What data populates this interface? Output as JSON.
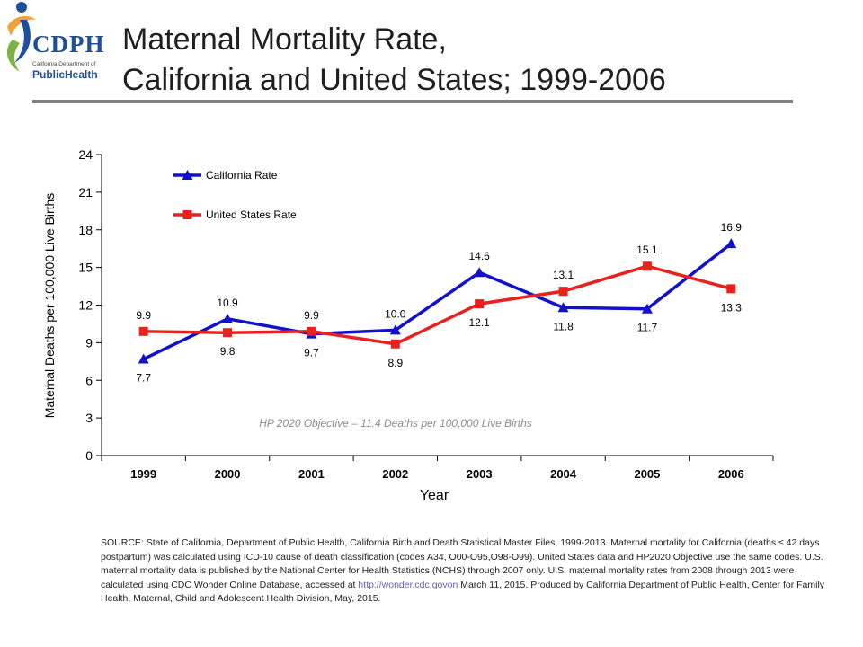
{
  "logo": {
    "main": "CDPH",
    "sub1": "California Department of",
    "sub2": "PublicHealth",
    "colors": {
      "blue": "#1f4e9c",
      "orange": "#f2a23a",
      "green": "#7cb342"
    }
  },
  "title": {
    "line1": "Maternal Mortality Rate,",
    "line2": "California and United States; 1999-2006"
  },
  "chart_data": {
    "type": "line",
    "categories": [
      "1999",
      "2000",
      "2001",
      "2002",
      "2003",
      "2004",
      "2005",
      "2006"
    ],
    "series": [
      {
        "name": "California Rate",
        "values": [
          7.7,
          10.9,
          9.7,
          10.0,
          14.6,
          11.8,
          11.7,
          16.9
        ],
        "color": "#1111cc",
        "marker": "triangle"
      },
      {
        "name": "United States Rate",
        "values": [
          9.9,
          9.8,
          9.9,
          8.9,
          12.1,
          13.1,
          15.1,
          13.3
        ],
        "color": "#e8211d",
        "marker": "square"
      }
    ],
    "data_labels": {
      "California Rate": [
        "7.7",
        "10.9",
        "9.7",
        "10.0",
        "14.6",
        "11.8",
        "11.7",
        "16.9"
      ],
      "United States Rate": [
        "9.9",
        "9.8",
        "9.9",
        "8.9",
        "12.1",
        "13.1",
        "15.1",
        "13.3"
      ]
    },
    "xlabel": "Year",
    "ylabel": "Maternal Deaths per 100,000 Live Births",
    "ylim": [
      0,
      24
    ],
    "yticks": [
      0,
      3,
      6,
      9,
      12,
      15,
      18,
      21,
      24
    ],
    "annotation": "HP 2020 Objective – 11.4 Deaths per 100,000 Live Births",
    "grid": false,
    "legend_position": "top-left"
  },
  "source": {
    "text": "SOURCE: State of California, Department of Public Health, California Birth and Death Statistical Master Files, 1999-2013.  Maternal mortality for California (deaths ≤ 42 days postpartum) was calculated using ICD-10 cause of death classification (codes A34, O00-O95,O98-O99). United States data and HP2020 Objective use the same codes. U.S. maternal mortality data is published by the National Center for Health Statistics (NCHS) through 2007 only.  U.S. maternal mortality rates from 2008 through 2013 were calculated using CDC Wonder Online Database, accessed at ",
    "link": "http://wonder.cdc.govon",
    "after": " March 11, 2015. Produced by California Department of Public Health, Center for Family Health, Maternal, Child and Adolescent Health Division, May, 2015."
  }
}
